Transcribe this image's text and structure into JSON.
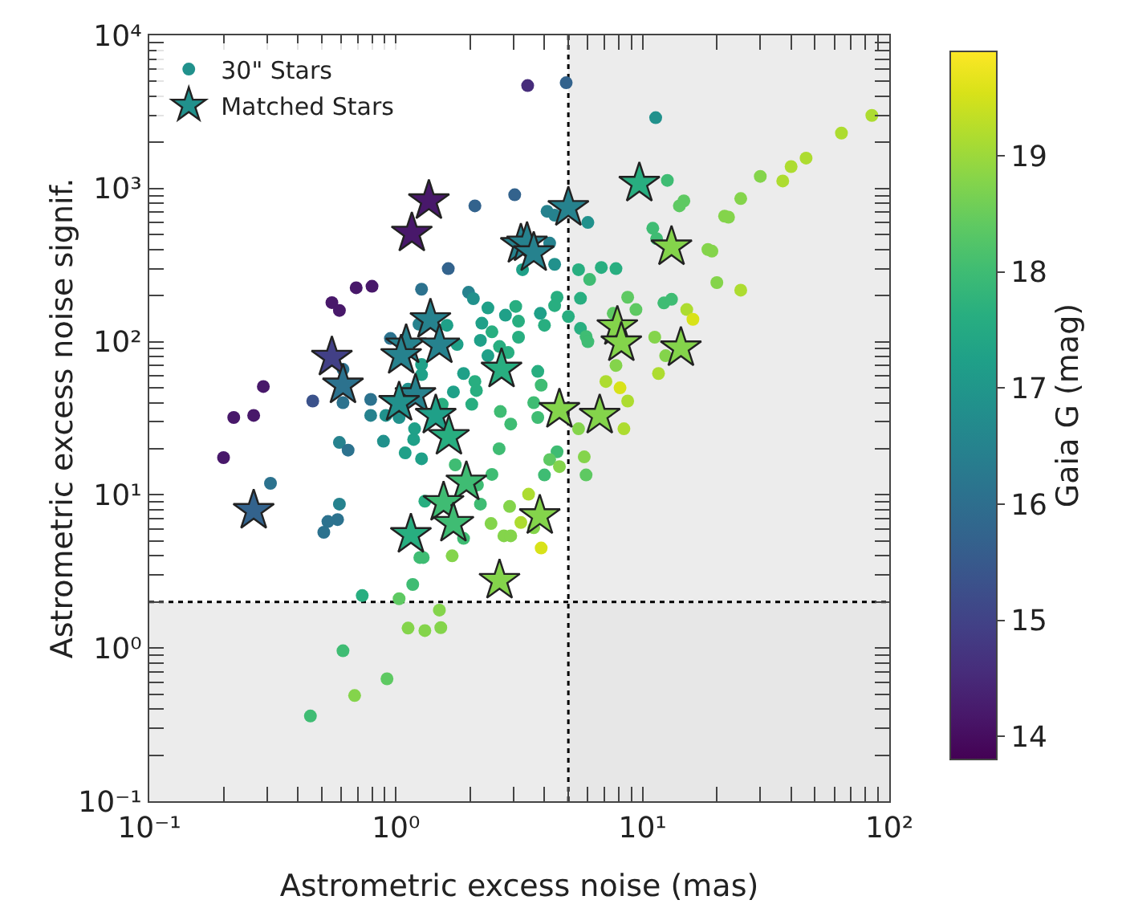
{
  "chart_data": {
    "type": "scatter",
    "xlabel": "Astrometric excess noise (mas)",
    "ylabel": "Astrometric excess noise signif.",
    "clabel": "Gaia G (mag)",
    "log": "xy",
    "grid": false,
    "legend": "top left",
    "xlim": [
      0.1,
      100
    ],
    "xticks": [
      {
        "value": 0.1,
        "label": "10⁻¹"
      },
      {
        "value": 0.2,
        "label": null
      },
      {
        "value": 0.3,
        "label": null
      },
      {
        "value": 0.4,
        "label": null
      },
      {
        "value": 0.5,
        "label": null
      },
      {
        "value": 0.6,
        "label": null
      },
      {
        "value": 0.7,
        "label": null
      },
      {
        "value": 0.8,
        "label": null
      },
      {
        "value": 0.9,
        "label": null
      },
      {
        "value": 1,
        "label": "10⁰"
      },
      {
        "value": 2,
        "label": null
      },
      {
        "value": 3,
        "label": null
      },
      {
        "value": 4,
        "label": null
      },
      {
        "value": 5,
        "label": null
      },
      {
        "value": 6,
        "label": null
      },
      {
        "value": 7,
        "label": null
      },
      {
        "value": 8,
        "label": null
      },
      {
        "value": 9,
        "label": null
      },
      {
        "value": 10,
        "label": "10¹"
      },
      {
        "value": 20,
        "label": null
      },
      {
        "value": 30,
        "label": null
      },
      {
        "value": 40,
        "label": null
      },
      {
        "value": 50,
        "label": null
      },
      {
        "value": 60,
        "label": null
      },
      {
        "value": 70,
        "label": null
      },
      {
        "value": 80,
        "label": null
      },
      {
        "value": 90,
        "label": null
      },
      {
        "value": 100,
        "label": "10²"
      }
    ],
    "ylim": [
      0.1,
      10000
    ],
    "yticks": [
      {
        "value": 0.1,
        "label": "10⁻¹"
      },
      {
        "value": 0.2,
        "label": null
      },
      {
        "value": 0.3,
        "label": null
      },
      {
        "value": 0.4,
        "label": null
      },
      {
        "value": 0.5,
        "label": null
      },
      {
        "value": 0.6,
        "label": null
      },
      {
        "value": 0.7,
        "label": null
      },
      {
        "value": 0.8,
        "label": null
      },
      {
        "value": 0.9,
        "label": null
      },
      {
        "value": 1,
        "label": "10⁰"
      },
      {
        "value": 2,
        "label": null
      },
      {
        "value": 3,
        "label": null
      },
      {
        "value": 4,
        "label": null
      },
      {
        "value": 5,
        "label": null
      },
      {
        "value": 6,
        "label": null
      },
      {
        "value": 7,
        "label": null
      },
      {
        "value": 8,
        "label": null
      },
      {
        "value": 9,
        "label": null
      },
      {
        "value": 10,
        "label": "10¹"
      },
      {
        "value": 20,
        "label": null
      },
      {
        "value": 30,
        "label": null
      },
      {
        "value": 40,
        "label": null
      },
      {
        "value": 50,
        "label": null
      },
      {
        "value": 60,
        "label": null
      },
      {
        "value": 70,
        "label": null
      },
      {
        "value": 80,
        "label": null
      },
      {
        "value": 90,
        "label": null
      },
      {
        "value": 100,
        "label": "10²"
      },
      {
        "value": 200,
        "label": null
      },
      {
        "value": 300,
        "label": null
      },
      {
        "value": 400,
        "label": null
      },
      {
        "value": 500,
        "label": null
      },
      {
        "value": 600,
        "label": null
      },
      {
        "value": 700,
        "label": null
      },
      {
        "value": 800,
        "label": null
      },
      {
        "value": 900,
        "label": null
      },
      {
        "value": 1000,
        "label": "10³"
      },
      {
        "value": 2000,
        "label": null
      },
      {
        "value": 3000,
        "label": null
      },
      {
        "value": 4000,
        "label": null
      },
      {
        "value": 5000,
        "label": null
      },
      {
        "value": 6000,
        "label": null
      },
      {
        "value": 7000,
        "label": null
      },
      {
        "value": 8000,
        "label": null
      },
      {
        "value": 9000,
        "label": null
      },
      {
        "value": 10000,
        "label": "10⁴"
      }
    ],
    "clim": [
      13.8,
      19.9
    ],
    "cticks": [
      14,
      15,
      16,
      17,
      18,
      19
    ],
    "bands": [
      {
        "axis": "x",
        "from": 5,
        "to": 100,
        "color": "#e5e5e5"
      },
      {
        "axis": "y",
        "from": 0.1,
        "to": 2,
        "color": "#e5e5e5"
      }
    ],
    "ref_lines": [
      {
        "axis": "x",
        "value": 5,
        "color": "#000000",
        "line_style": "dotted"
      },
      {
        "axis": "y",
        "value": 2,
        "color": "#000000",
        "line_style": "dotted"
      }
    ],
    "series": [
      {
        "name": "30\" Stars",
        "marker": "circle",
        "x": [
          3.03,
          2.09,
          1.63,
          1.27,
          0.8,
          0.69,
          0.55,
          0.59,
          0.95,
          1.24,
          1.61,
          1.97,
          2.06,
          2.36,
          2.23,
          2.78,
          3.06,
          3.14,
          2.45,
          2.2,
          2.63,
          3.14,
          1.77,
          2.36,
          1.27,
          1.27,
          1.88,
          2.09,
          1.71,
          2.12,
          2.03,
          1.54,
          1.12,
          0.79,
          0.61,
          0.46,
          0.29,
          0.61,
          0.79,
          0.91,
          1.03,
          2.65,
          0.22,
          0.265,
          3.42,
          4.9,
          11.3,
          85,
          64,
          46,
          40,
          37,
          30,
          25,
          21.5,
          22.3,
          12.6,
          14.7,
          14.1,
          4.1,
          4.4,
          6.0,
          4.2,
          3.26,
          4.4,
          5.5,
          6.1,
          6.8,
          7.8,
          11.0,
          11.4,
          18.4,
          19.1,
          20,
          25,
          8.7,
          9.4,
          12.2,
          13.1,
          15.1,
          16,
          4.5,
          4.4,
          5.6,
          3.85,
          5.0,
          4.0,
          5.6,
          5.9,
          6.0,
          7.6,
          11.2,
          12.4,
          7.8,
          11.6,
          7.1,
          8.1,
          8.7,
          3.76,
          3.88,
          3.62,
          3.76,
          2.85,
          0.2,
          0.31,
          0.59,
          0.64,
          0.89,
          1.19,
          1.18,
          1.09,
          1.27,
          2.92,
          2.62,
          1.74,
          2.45,
          2.14,
          2.2,
          1.31,
          0.59,
          0.58,
          0.53,
          0.51,
          2.89,
          3.21,
          2.43,
          2.74,
          2.92,
          1.88,
          1.25,
          1.29,
          1.69,
          1.17,
          0.73,
          1.03,
          1.5,
          1.12,
          1.31,
          1.52,
          0.61,
          0.92,
          0.68,
          0.45,
          5.5,
          8.4,
          4.5,
          4.2,
          4.6,
          4.0,
          5.8,
          5.9,
          3.45,
          3.62,
          3.88
        ],
        "values": [
          910,
          770,
          300,
          220,
          230,
          225,
          180,
          160,
          105,
          130,
          128,
          210,
          191,
          166,
          132,
          149,
          170,
          136,
          116,
          102,
          93,
          107,
          96,
          81,
          71,
          61,
          62,
          55,
          47,
          48,
          39,
          39,
          49,
          42,
          40,
          41,
          51,
          66,
          33,
          33,
          32,
          35,
          32,
          33,
          4700,
          4900,
          2900,
          3000,
          2300,
          1580,
          1390,
          1120,
          1200,
          860,
          660,
          650,
          1130,
          830,
          770,
          710,
          670,
          600,
          440,
          295,
          320,
          295,
          255,
          305,
          300,
          550,
          470,
          400,
          390,
          243,
          217,
          195,
          162,
          179,
          189,
          162,
          140,
          195,
          172,
          192,
          153,
          146,
          128,
          122,
          108,
          100,
          153,
          107,
          81,
          70,
          62,
          55,
          50,
          41,
          64,
          52,
          40,
          32,
          85,
          17.5,
          11.9,
          22,
          19.6,
          22.4,
          27,
          23,
          18.8,
          17.2,
          29,
          20,
          15.7,
          13.6,
          11.6,
          8.7,
          9.1,
          8.7,
          6.9,
          6.7,
          5.7,
          8.4,
          6.6,
          6.5,
          5.4,
          5.4,
          5.2,
          3.9,
          3.9,
          4.0,
          2.6,
          2.2,
          2.1,
          1.77,
          1.35,
          1.3,
          1.36,
          0.96,
          0.63,
          0.49,
          0.36,
          27,
          27,
          19.1,
          17,
          15.3,
          13.5,
          17.7,
          13.5,
          10.1,
          6.1,
          4.5
        ],
        "colors": [
          "#33638d",
          "#33638d",
          "#33638d",
          "#2c728e",
          "#48186a",
          "#48186a",
          "#48186a",
          "#48186a",
          "#2c728e",
          "#26828e",
          "#1fa088",
          "#26828e",
          "#21918c",
          "#1fa088",
          "#1fa088",
          "#1fa088",
          "#28ae80",
          "#28ae80",
          "#28ae80",
          "#1fa088",
          "#28ae80",
          "#28ae80",
          "#1fa088",
          "#1fa088",
          "#1fa088",
          "#1fa088",
          "#1fa088",
          "#28ae80",
          "#1fa088",
          "#28ae80",
          "#28ae80",
          "#28ae80",
          "#21918c",
          "#2c728e",
          "#2c728e",
          "#3b528b",
          "#48186a",
          "#2c728e",
          "#26828e",
          "#21918c",
          "#21918c",
          "#3fbc73",
          "#48186a",
          "#48186a",
          "#472d7b",
          "#33638d",
          "#21918c",
          "#addc30",
          "#addc30",
          "#addc30",
          "#addc30",
          "#addc30",
          "#84d44b",
          "#84d44b",
          "#84d44b",
          "#84d44b",
          "#3fbc73",
          "#5ec962",
          "#5ec962",
          "#26828e",
          "#26828e",
          "#21918c",
          "#26828e",
          "#1fa088",
          "#21918c",
          "#28ae80",
          "#3fbc73",
          "#28ae80",
          "#28ae80",
          "#3fbc73",
          "#3fbc73",
          "#84d44b",
          "#84d44b",
          "#84d44b",
          "#addc30",
          "#5ec962",
          "#5ec962",
          "#3fbc73",
          "#3fbc73",
          "#addc30",
          "#d8e219",
          "#28ae80",
          "#28ae80",
          "#28ae80",
          "#1fa088",
          "#28ae80",
          "#28ae80",
          "#28ae80",
          "#3fbc73",
          "#3fbc73",
          "#5ec962",
          "#84d44b",
          "#84d44b",
          "#84d44b",
          "#addc30",
          "#addc30",
          "#d8e219",
          "#addc30",
          "#28ae80",
          "#3fbc73",
          "#3fbc73",
          "#3fbc73",
          "#28ae80",
          "#48186a",
          "#2c728e",
          "#26828e",
          "#2c728e",
          "#21918c",
          "#1fa088",
          "#1fa088",
          "#1fa088",
          "#1fa088",
          "#3fbc73",
          "#3fbc73",
          "#3fbc73",
          "#3fbc73",
          "#3fbc73",
          "#3fbc73",
          "#28ae80",
          "#26828e",
          "#2c728e",
          "#2c728e",
          "#2c728e",
          "#84d44b",
          "#addc30",
          "#84d44b",
          "#84d44b",
          "#84d44b",
          "#3fbc73",
          "#3fbc73",
          "#3fbc73",
          "#84d44b",
          "#3fbc73",
          "#28ae80",
          "#5ec962",
          "#84d44b",
          "#84d44b",
          "#84d44b",
          "#84d44b",
          "#3fbc73",
          "#5ec962",
          "#84d44b",
          "#3fbc73",
          "#84d44b",
          "#addc30",
          "#3fbc73",
          "#5ec962",
          "#84d44b",
          "#3fbc73",
          "#84d44b",
          "#5ec962",
          "#addc30",
          "#84d44b",
          "#d8e219"
        ]
      },
      {
        "name": "Matched Stars",
        "marker": "star",
        "x": [
          1.36,
          1.16,
          1.38,
          1.1,
          1.5,
          1.05,
          0.55,
          0.61,
          1.2,
          1.03,
          2.68,
          3.21,
          1.45,
          9.7,
          5.0,
          3.4,
          3.62,
          13.1,
          7.9,
          8.2,
          14.3,
          4.6,
          6.7,
          0.265,
          1.93,
          1.56,
          1.71,
          1.15,
          2.63,
          1.64,
          3.83
        ],
        "values": [
          830,
          510,
          139,
          95,
          95,
          81,
          79,
          52,
          45,
          40,
          66,
          430,
          33,
          1080,
          750,
          440,
          380,
          415,
          125,
          98,
          91,
          36,
          33,
          7.9,
          12.1,
          8.9,
          6.5,
          5.5,
          2.76,
          24,
          7.3
        ],
        "colors": [
          "#48186a",
          "#48186a",
          "#26828e",
          "#26828e",
          "#26828e",
          "#26828e",
          "#424086",
          "#2c728e",
          "#26828e",
          "#21918c",
          "#28ae80",
          "#26828e",
          "#1fa088",
          "#28ae80",
          "#26828e",
          "#26828e",
          "#26828e",
          "#84d44b",
          "#84d44b",
          "#84d44b",
          "#84d44b",
          "#84d44b",
          "#84d44b",
          "#33638d",
          "#3fbc73",
          "#3fbc73",
          "#3fbc73",
          "#28ae80",
          "#84d44b",
          "#28ae80",
          "#84d44b"
        ]
      }
    ]
  }
}
